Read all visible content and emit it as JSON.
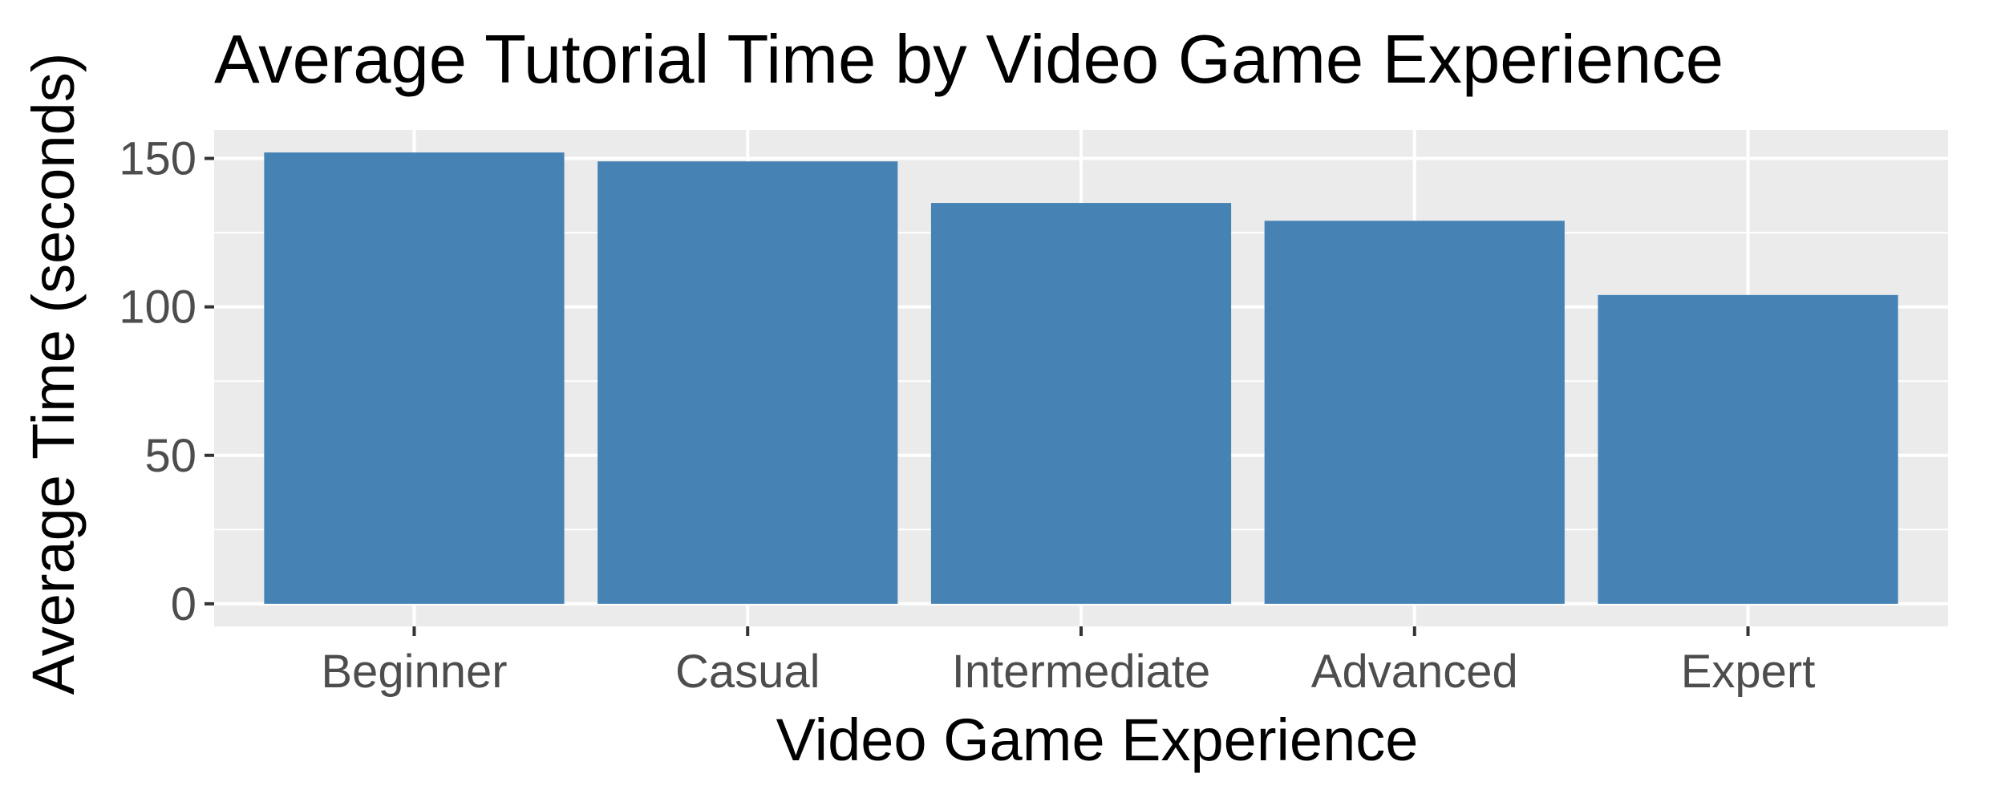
{
  "colors": {
    "bar": "#4682B4",
    "panel": "#EBEBEB",
    "grid": "#FFFFFF",
    "tick": "#333333"
  },
  "chart_data": {
    "type": "bar",
    "title": "Average Tutorial Time by Video Game Experience",
    "xlabel": "Video Game Experience",
    "ylabel": "Average Time (seconds)",
    "categories": [
      "Beginner",
      "Casual",
      "Intermediate",
      "Advanced",
      "Expert"
    ],
    "values": [
      152,
      149,
      135,
      129,
      104
    ],
    "ylim": [
      -7.6,
      159.6
    ],
    "yticks": [
      "0",
      "50",
      "100",
      "150"
    ],
    "grid": true,
    "legend": "none"
  }
}
